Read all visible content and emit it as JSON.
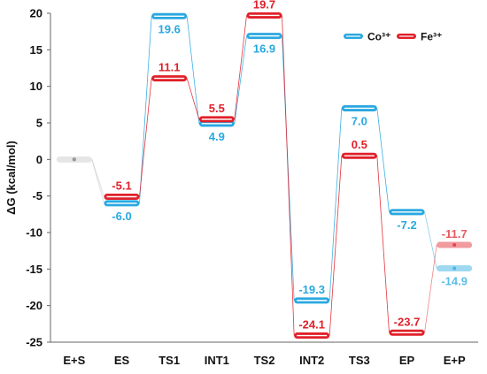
{
  "chart_data": {
    "type": "line",
    "ylabel": "ΔG (kcal/mol)",
    "ylim": [
      -25,
      20
    ],
    "yticks": [
      20,
      15,
      10,
      5,
      0,
      -5,
      -10,
      -15,
      -20,
      -25
    ],
    "categories": [
      "E+S",
      "ES",
      "TS1",
      "INT1",
      "TS2",
      "INT2",
      "TS3",
      "EP",
      "E+P"
    ],
    "series": [
      {
        "name": "Co³⁺",
        "color": "#29a8e0",
        "values": [
          0,
          -6.0,
          19.6,
          4.9,
          16.9,
          -19.3,
          7.0,
          -7.2,
          -14.9
        ],
        "labels": [
          "",
          "-6.0",
          "19.6",
          "4.9",
          "16.9",
          "-19.3",
          "7.0",
          "-7.2",
          "-14.9"
        ]
      },
      {
        "name": "Fe³⁺",
        "color": "#e0202a",
        "values": [
          0,
          -5.1,
          11.1,
          5.5,
          19.7,
          -24.1,
          0.5,
          -23.7,
          -11.7
        ],
        "labels": [
          "",
          "-5.1",
          "11.1",
          "5.5",
          "19.7",
          "-24.1",
          "0.5",
          "-23.7",
          "-11.7"
        ]
      }
    ],
    "legend_position": "top-right"
  }
}
